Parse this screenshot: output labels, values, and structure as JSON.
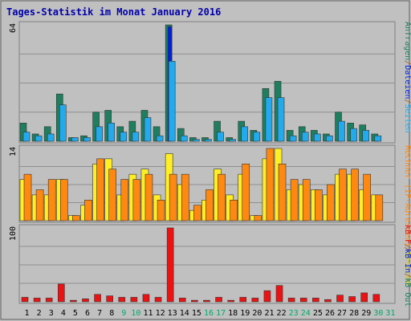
{
  "chart_data": {
    "type": "bar",
    "title": "Tages-Statistik im Monat January 2016",
    "categories": [
      "1",
      "2",
      "3",
      "4",
      "5",
      "6",
      "7",
      "8",
      "9",
      "10",
      "11",
      "12",
      "13",
      "14",
      "15",
      "16",
      "17",
      "18",
      "19",
      "20",
      "21",
      "22",
      "23",
      "24",
      "25",
      "26",
      "27",
      "28",
      "29",
      "30",
      "31"
    ],
    "weekend_days": [
      "9",
      "10",
      "16",
      "17",
      "23",
      "24",
      "30",
      "31"
    ],
    "panels": [
      {
        "name": "top",
        "ylabel": "64",
        "ylim": [
          0,
          64
        ],
        "series": [
          {
            "name": "Anfragen",
            "color": "#1d7f5f",
            "values": [
              10,
              4,
              8,
              26,
              2,
              3,
              16,
              17,
              8,
              11,
              17,
              8,
              64,
              7,
              2,
              2,
              11,
              2,
              11,
              6,
              29,
              33,
              6,
              8,
              6,
              4,
              16,
              10,
              9,
              4,
              0
            ]
          },
          {
            "name": "Dateien",
            "color": "#0022dd",
            "values": [
              0,
              0,
              0,
              0,
              0,
              0,
              0,
              0,
              0,
              0,
              0,
              0,
              63,
              0,
              0,
              0,
              0,
              0,
              0,
              0,
              0,
              0,
              0,
              0,
              0,
              0,
              0,
              0,
              0,
              0,
              0
            ]
          },
          {
            "name": "Seiten",
            "color": "#22aaee",
            "values": [
              5,
              3,
              4,
              20,
              2,
              2,
              8,
              10,
              5,
              5,
              13,
              3,
              44,
              3,
              1,
              1,
              5,
              1,
              8,
              5,
              24,
              24,
              3,
              5,
              4,
              3,
              11,
              7,
              6,
              3,
              0
            ]
          }
        ]
      },
      {
        "name": "middle",
        "ylabel": "14",
        "ylim": [
          0,
          14
        ],
        "series": [
          {
            "name": "Besuche",
            "color": "#ffee22",
            "values": [
              8,
              5,
              5,
              8,
              1,
              3,
              11,
              12,
              5,
              9,
              10,
              5,
              13,
              7,
              2,
              4,
              10,
              5,
              9,
              1,
              12,
              14,
              6,
              7,
              6,
              5,
              9,
              9,
              6,
              5,
              0
            ]
          },
          {
            "name": "Rechner (IP-Adressen)",
            "color": "#ff8811",
            "values": [
              9,
              6,
              8,
              8,
              1,
              4,
              12,
              10,
              8,
              8,
              9,
              4,
              9,
              9,
              3,
              6,
              9,
              4,
              11,
              1,
              14,
              11,
              8,
              8,
              6,
              7,
              10,
              10,
              9,
              5,
              0
            ]
          }
        ]
      },
      {
        "name": "bottom",
        "ylabel": "100",
        "ylim": [
          0,
          100
        ],
        "series": [
          {
            "name": "kB F",
            "color": "#ee1111",
            "values": [
              6,
              5,
              5,
              24,
              2,
              4,
              10,
              8,
              6,
              6,
              10,
              6,
              100,
              5,
              2,
              2,
              6,
              2,
              6,
              5,
              15,
              22,
              5,
              5,
              5,
              3,
              9,
              7,
              12,
              10,
              0
            ]
          }
        ]
      }
    ],
    "legend_top": [
      {
        "text": "Anfragen",
        "color": "#1d7f5f"
      },
      {
        "text": "/",
        "color": "#a06020"
      },
      {
        "text": "Dateien",
        "color": "#0022dd"
      },
      {
        "text": "/",
        "color": "#a06020"
      },
      {
        "text": "Seiten",
        "color": "#22aaee"
      }
    ],
    "legend_middle": [
      {
        "text": "Rechner (IP-Adressen)",
        "color": "#ff8811"
      },
      {
        "text": "/",
        "color": "#a06020"
      },
      {
        "text": "Besuche",
        "color": "#ddcc00"
      }
    ],
    "legend_bottom": [
      {
        "text": "kB F",
        "color": "#ee1111"
      },
      {
        "text": "/",
        "color": "#a06020"
      },
      {
        "text": "kB In",
        "color": "#0022dd"
      },
      {
        "text": "/",
        "color": "#a06020"
      },
      {
        "text": "kB Out",
        "color": "#1d7f5f"
      }
    ],
    "colors": {
      "background": "#c0c0c0",
      "grid": "#909090",
      "title": "#0000aa",
      "weekday_label": "#000000",
      "weekend_label": "#00aa66"
    }
  }
}
